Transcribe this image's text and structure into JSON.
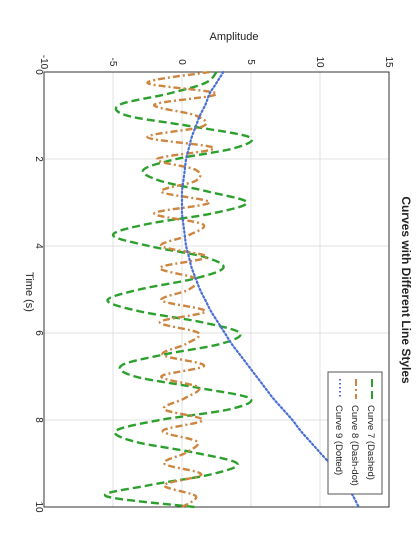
{
  "chart_data": {
    "type": "line",
    "orientation": "rotated 90° clockwise (time axis runs downward)",
    "title": "Curves with Different Line Styles",
    "xlabel": "Time (s)",
    "ylabel": "Amplitude",
    "xlim": [
      0,
      10
    ],
    "ylim": [
      -10,
      15
    ],
    "xticks": [
      "0",
      "2",
      "4",
      "6",
      "8",
      "10"
    ],
    "yticks": [
      "-10",
      "-5",
      "0",
      "5",
      "10",
      "15"
    ],
    "grid": true,
    "legend_position": "bottom-right",
    "x": [
      0,
      0.25,
      0.5,
      0.75,
      1,
      1.25,
      1.5,
      1.75,
      2,
      2.25,
      2.5,
      2.75,
      3,
      3.25,
      3.5,
      3.75,
      4,
      4.25,
      4.5,
      4.75,
      5,
      5.25,
      5.5,
      5.75,
      6,
      6.25,
      6.5,
      6.75,
      7,
      7.25,
      7.5,
      7.75,
      8,
      8.25,
      8.5,
      8.75,
      9,
      9.25,
      9.5,
      9.75,
      10
    ],
    "series": [
      {
        "name": "Curve 7 (Dashed)",
        "style": "dashed",
        "color": "#2ca02c",
        "values": [
          2.5,
          1.7,
          -1.0,
          -4.5,
          -4.0,
          0.7,
          4.9,
          3.8,
          -0.4,
          -2.8,
          -1.6,
          1.9,
          4.7,
          2.2,
          -2.6,
          -5.0,
          -2.4,
          1.6,
          3.0,
          0.9,
          -3.1,
          -5.4,
          -3.1,
          1.4,
          4.2,
          2.8,
          -1.4,
          -4.4,
          -3.4,
          1.0,
          4.9,
          3.5,
          -1.6,
          -4.8,
          -3.4,
          0.9,
          4.0,
          2.1,
          -2.4,
          -5.5,
          0.9
        ]
      },
      {
        "name": "Curve 8 (Dash-dot)",
        "style": "dashdot",
        "color": "#cd853f",
        "values": [
          2.0,
          -2.5,
          2.5,
          -2.0,
          1.0,
          1.5,
          -2.5,
          2.3,
          -1.8,
          1.0,
          1.0,
          -1.5,
          2.0,
          -2.0,
          1.5,
          0.5,
          -1.5,
          1.8,
          -1.6,
          1.0,
          0.5,
          -1.5,
          1.7,
          -1.6,
          1.2,
          0.3,
          -1.4,
          1.6,
          -1.5,
          1.2,
          0.2,
          -1.3,
          1.5,
          -1.4,
          1.1,
          0.3,
          -1.3,
          1.4,
          -1.3,
          1.0,
          0.0
        ]
      },
      {
        "name": "Curve 9 (Dotted)",
        "style": "dotted",
        "color": "#4a6fd6",
        "values": [
          3.0,
          2.5,
          2.0,
          1.7,
          1.3,
          1.0,
          0.7,
          0.5,
          0.3,
          0.2,
          0.1,
          0.0,
          0.0,
          0.0,
          0.1,
          0.2,
          0.3,
          0.5,
          0.7,
          1.0,
          1.3,
          1.7,
          2.1,
          2.6,
          3.1,
          3.6,
          4.2,
          4.8,
          5.4,
          6.0,
          6.6,
          7.3,
          8.0,
          8.6,
          9.3,
          10.0,
          10.7,
          11.3,
          11.9,
          12.4,
          12.8
        ]
      }
    ]
  }
}
